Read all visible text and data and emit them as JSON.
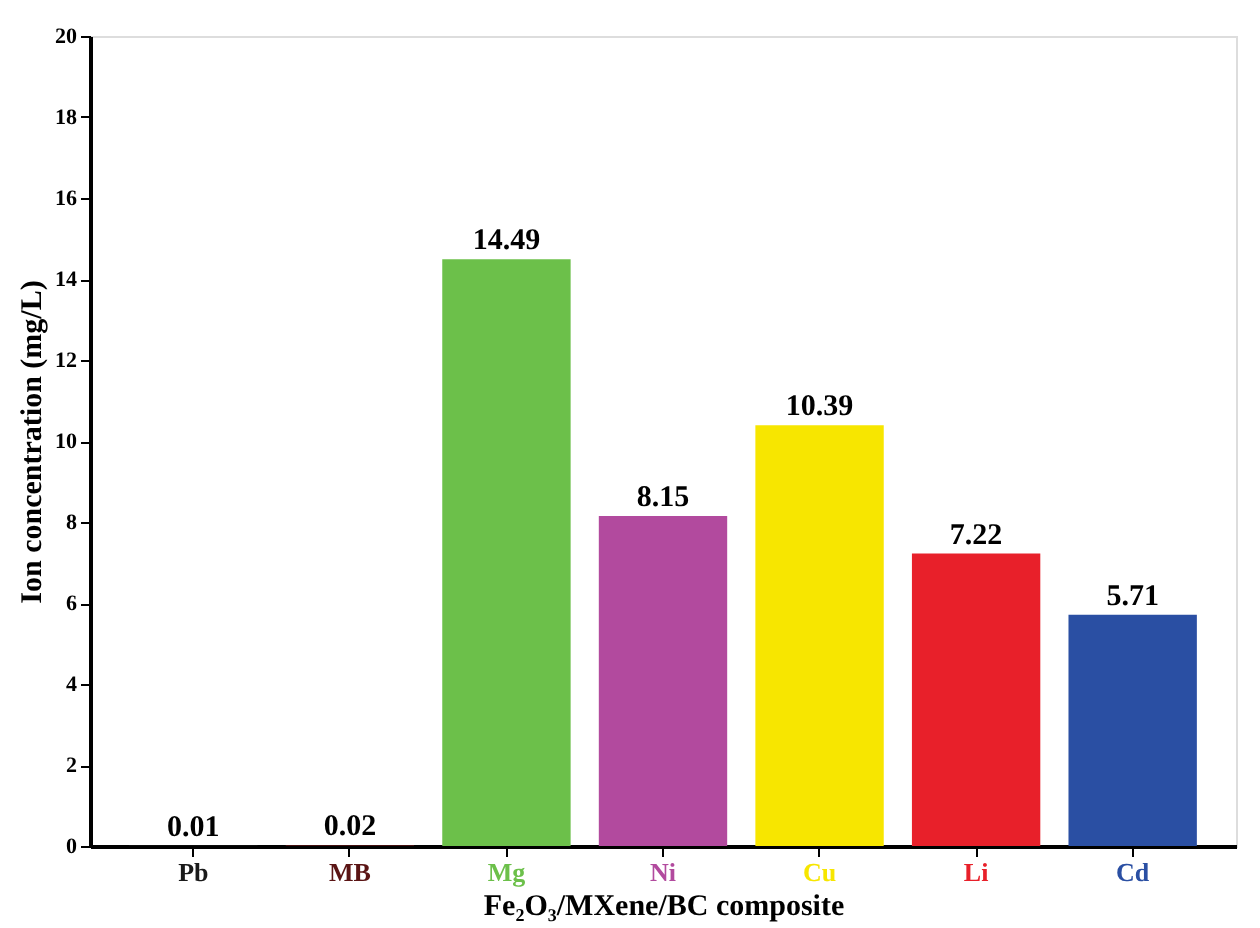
{
  "chart_data": {
    "type": "bar",
    "xlabel": "Fe₂O₃/MXene/BC composite",
    "ylabel": "Ion concentration (mg/L)",
    "categories": [
      "Pb",
      "MB",
      "Mg",
      "Ni",
      "Cu",
      "Li",
      "Cd"
    ],
    "values": [
      0.01,
      0.02,
      14.49,
      8.15,
      10.39,
      7.22,
      5.71
    ],
    "colors": [
      "#1a1a1a",
      "#5a1414",
      "#6cc04a",
      "#b24a9e",
      "#f7e600",
      "#e8202a",
      "#2a4fa3"
    ],
    "ylim": [
      0,
      20
    ],
    "yticks": [
      0,
      2,
      4,
      6,
      8,
      10,
      12,
      14,
      16,
      18,
      20
    ],
    "grid": false,
    "data_labels": true
  }
}
